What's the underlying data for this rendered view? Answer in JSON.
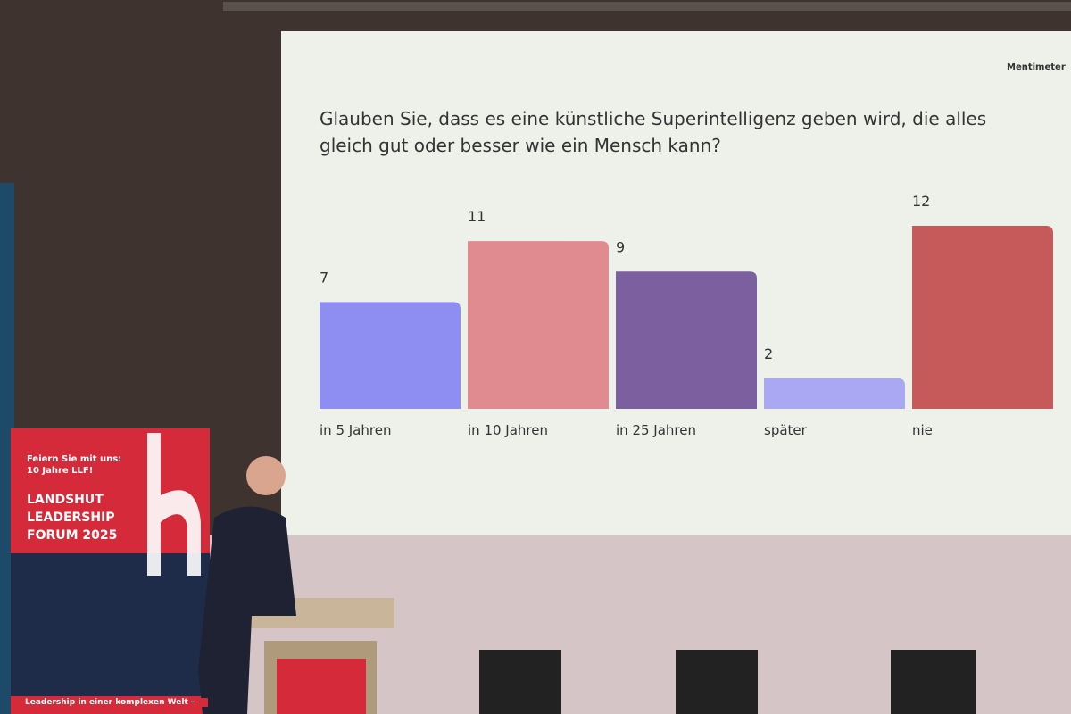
{
  "chart_data": {
    "type": "bar",
    "title": "Glauben Sie, dass es eine künstliche Superintelligenz geben wird, die alles gleich gut oder besser wie ein Mensch kann?",
    "brand": "Mentimeter",
    "categories": [
      "in 5 Jahren",
      "in 10 Jahren",
      "in 25 Jahren",
      "später",
      "nie"
    ],
    "values": [
      7,
      11,
      9,
      2,
      12
    ],
    "colors": [
      "#8e8ef2",
      "#e08b90",
      "#7c5f9f",
      "#aaa8f2",
      "#c65a5a"
    ]
  },
  "banner": {
    "tagline": "Feiern Sie mit uns: 10 Jahre LLF!",
    "event": "LANDSHUT LEADERSHIP FORUM 2025",
    "footer": "Leadership in einer komplexen Welt –"
  }
}
